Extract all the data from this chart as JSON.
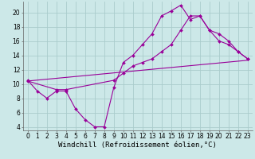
{
  "xlabel": "Windchill (Refroidissement éolien,°C)",
  "bg_color": "#cce8e8",
  "grid_color": "#aacccc",
  "line_color": "#990099",
  "xlim": [
    -0.5,
    23.5
  ],
  "ylim": [
    3.5,
    21.5
  ],
  "xticks": [
    0,
    1,
    2,
    3,
    4,
    5,
    6,
    7,
    8,
    9,
    10,
    11,
    12,
    13,
    14,
    15,
    16,
    17,
    18,
    19,
    20,
    21,
    22,
    23
  ],
  "yticks": [
    4,
    6,
    8,
    10,
    12,
    14,
    16,
    18,
    20
  ],
  "line1_x": [
    0,
    1,
    2,
    3,
    4,
    5,
    6,
    7,
    8,
    9,
    10,
    11,
    12,
    13,
    14,
    15,
    16,
    17,
    18,
    19,
    20,
    21,
    22,
    23
  ],
  "line1_y": [
    10.5,
    9.0,
    8.0,
    9.0,
    9.0,
    6.5,
    5.0,
    4.0,
    4.0,
    9.5,
    13.0,
    14.0,
    15.5,
    17.0,
    19.5,
    20.2,
    21.0,
    19.0,
    19.5,
    17.5,
    16.0,
    15.5,
    14.5,
    13.5
  ],
  "line2_x": [
    0,
    23
  ],
  "line2_y": [
    10.4,
    13.3
  ],
  "line3_x": [
    0,
    3,
    4,
    9,
    10,
    11,
    12,
    13,
    14,
    15,
    16,
    17,
    18,
    19,
    20,
    21,
    22,
    23
  ],
  "line3_y": [
    10.4,
    9.2,
    9.2,
    10.5,
    11.5,
    12.5,
    13.0,
    13.5,
    14.5,
    15.5,
    17.5,
    19.5,
    19.5,
    17.5,
    17.0,
    16.0,
    14.5,
    13.5
  ],
  "figsize": [
    3.2,
    2.0
  ],
  "dpi": 100,
  "tick_fontsize": 5.5,
  "xlabel_fontsize": 6.5
}
